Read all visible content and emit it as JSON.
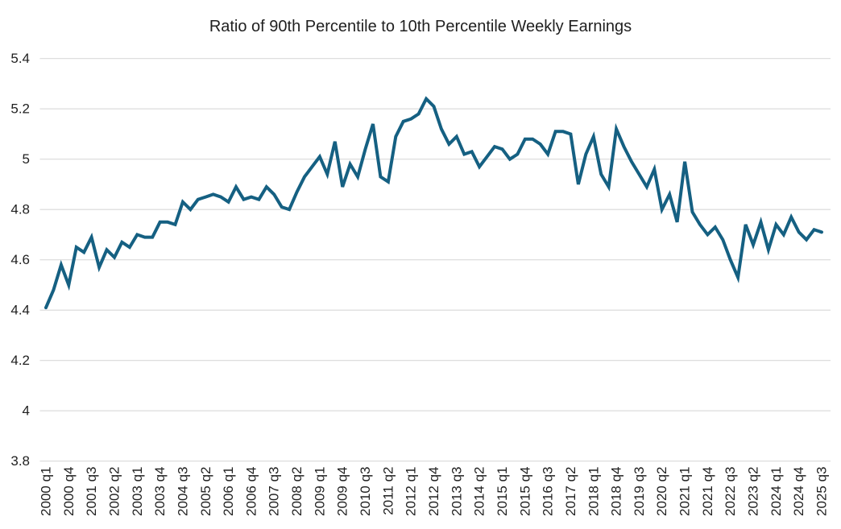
{
  "chart_data": {
    "type": "line",
    "title": "Ratio of 90th Percentile to 10th Percentile Weekly Earnings",
    "xlabel": "",
    "ylabel": "",
    "ylim": [
      3.8,
      5.4
    ],
    "yticks": [
      "5.4",
      "5.2",
      "5",
      "4.8",
      "4.6",
      "4.4",
      "4.2",
      "4",
      "3.8"
    ],
    "x_tick_every": 3,
    "grid": true,
    "legend": "none",
    "colors": {
      "line": "#156082",
      "gridline": "#D9D9D9",
      "text": "#1F1F1F",
      "background": "#FFFFFF"
    },
    "x": [
      "2000 q1",
      "2000 q2",
      "2000 q3",
      "2000 q4",
      "2001 q1",
      "2001 q2",
      "2001 q3",
      "2001 q4",
      "2002 q1",
      "2002 q2",
      "2002 q3",
      "2002 q4",
      "2003 q1",
      "2003 q2",
      "2003 q3",
      "2003 q4",
      "2004 q1",
      "2004 q2",
      "2004 q3",
      "2004 q4",
      "2005 q1",
      "2005 q2",
      "2005 q3",
      "2005 q4",
      "2006 q1",
      "2006 q2",
      "2006 q3",
      "2006 q4",
      "2007 q1",
      "2007 q2",
      "2007 q3",
      "2007 q4",
      "2008 q1",
      "2008 q2",
      "2008 q3",
      "2008 q4",
      "2009 q1",
      "2009 q2",
      "2009 q3",
      "2009 q4",
      "2010 q1",
      "2010 q2",
      "2010 q3",
      "2010 q4",
      "2011 q1",
      "2011 q2",
      "2011 q3",
      "2011 q4",
      "2012 q1",
      "2012 q2",
      "2012 q3",
      "2012 q4",
      "2013 q1",
      "2013 q2",
      "2013 q3",
      "2013 q4",
      "2014 q1",
      "2014 q2",
      "2014 q3",
      "2014 q4",
      "2015 q1",
      "2015 q2",
      "2015 q3",
      "2015 q4",
      "2016 q1",
      "2016 q2",
      "2016 q3",
      "2016 q4",
      "2017 q1",
      "2017 q2",
      "2017 q3",
      "2017 q4",
      "2018 q1",
      "2018 q2",
      "2018 q3",
      "2018 q4",
      "2019 q1",
      "2019 q2",
      "2019 q3",
      "2019 q4",
      "2020 q1",
      "2020 q2",
      "2020 q3",
      "2020 q4",
      "2021 q1",
      "2021 q2",
      "2021 q3",
      "2021 q4",
      "2022 q1",
      "2022 q2",
      "2022 q3",
      "2022 q4",
      "2023 q1",
      "2023 q2",
      "2023 q3",
      "2023 q4",
      "2024 q1",
      "2024 q2",
      "2024 q3",
      "2024 q4",
      "2025 q1",
      "2025 q2",
      "2025 q3"
    ],
    "series": [
      {
        "values": [
          4.41,
          4.48,
          4.58,
          4.5,
          4.65,
          4.63,
          4.69,
          4.57,
          4.64,
          4.61,
          4.67,
          4.65,
          4.7,
          4.69,
          4.69,
          4.75,
          4.75,
          4.74,
          4.83,
          4.8,
          4.84,
          4.85,
          4.86,
          4.85,
          4.83,
          4.89,
          4.84,
          4.85,
          4.84,
          4.89,
          4.86,
          4.81,
          4.8,
          4.87,
          4.93,
          4.97,
          5.01,
          4.94,
          5.07,
          4.89,
          4.98,
          4.93,
          5.04,
          5.14,
          4.93,
          4.91,
          5.09,
          5.15,
          5.16,
          5.18,
          5.24,
          5.21,
          5.12,
          5.06,
          5.09,
          5.02,
          5.03,
          4.97,
          5.01,
          5.05,
          5.04,
          5.0,
          5.02,
          5.08,
          5.08,
          5.06,
          5.02,
          5.11,
          5.11,
          5.1,
          4.9,
          5.02,
          5.09,
          4.94,
          4.89,
          5.12,
          5.05,
          4.99,
          4.94,
          4.89,
          4.96,
          4.8,
          4.86,
          4.75,
          4.99,
          4.79,
          4.74,
          4.7,
          4.73,
          4.68,
          4.6,
          4.53,
          4.74,
          4.66,
          4.75,
          4.64,
          4.74,
          4.7,
          4.77,
          4.71,
          4.68,
          4.72,
          4.71
        ]
      }
    ]
  }
}
